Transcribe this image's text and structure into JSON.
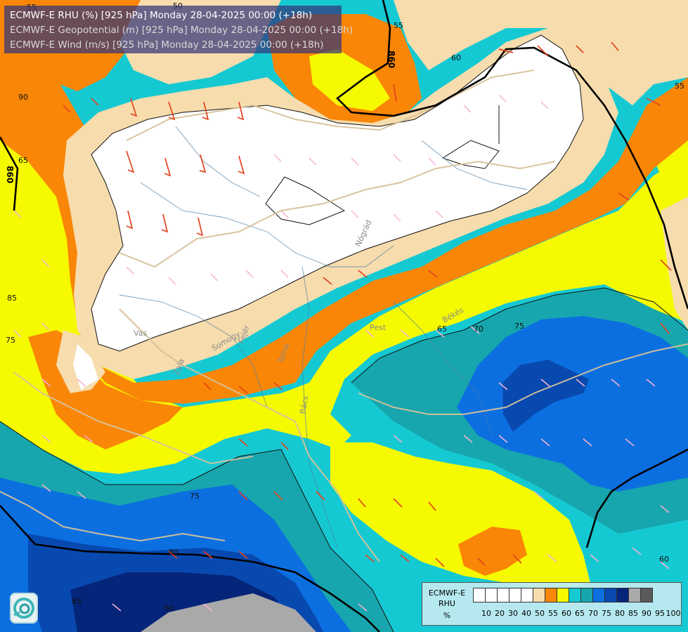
{
  "title": {
    "line1": "ECMWF-E RHU (%) [925 hPa] Monday 28-04-2025 00:00 (+18h)",
    "line2": "ECMWF-E Geopotential (m) [925 hPa] Monday 28-04-2025 00:00 (+18h)",
    "line3": "ECMWF-E Wind (m/s) [925 hPa] Monday 28-04-2025 00:00 (+18h)"
  },
  "legend": {
    "line1": "ECMWF-E",
    "line2": "RHU",
    "line3": "%",
    "colors": [
      "#ffffff",
      "#ffffff",
      "#ffffff",
      "#ffffff",
      "#ffffff",
      "#f7dcad",
      "#f98607",
      "#f6fa00",
      "#15c9d2",
      "#17a6ad",
      "#0b6fe0",
      "#0849b0",
      "#05257a",
      "#a9a9a9",
      "#5a5a5a"
    ],
    "labels": [
      "10",
      "20",
      "30",
      "40",
      "50",
      "55",
      "60",
      "65",
      "70",
      "75",
      "80",
      "85",
      "90",
      "95",
      "100"
    ]
  },
  "contour_labels": {
    "rh": [
      "55",
      "50",
      "55",
      "90",
      "65",
      "85",
      "75",
      "65",
      "70",
      "75",
      "75",
      "80",
      "85",
      "80",
      "60",
      "60",
      "55"
    ],
    "geopotential": [
      "860",
      "860"
    ]
  },
  "places": [
    "Vas",
    "Nógrád",
    "Pest",
    "Békés",
    "Fejér",
    "Tolna",
    "Zala",
    "Somogy",
    "Bács"
  ],
  "logo_icon": "ogimet-logo-icon"
}
